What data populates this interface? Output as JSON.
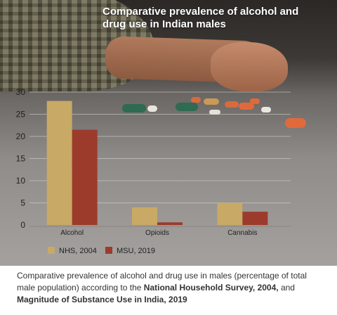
{
  "colors": {
    "nhs": "#c8a965",
    "msu": "#9c3b2c",
    "axis_text": "#222222"
  },
  "caption": {
    "part1": "Comparative prevalence of alcohol and drug use in males (percentage of total male population) according to the ",
    "bold1": "National Household Survey, 2004,",
    "part2": " and ",
    "bold2": "Magnitude of Substance Use in India, 2019"
  },
  "chart_data": {
    "type": "bar",
    "title": "Comparative prevalence of alcohol and drug use in Indian males",
    "categories": [
      "Alcohol",
      "Opioids",
      "Cannabis"
    ],
    "series": [
      {
        "name": "NHS, 2004",
        "values": [
          28,
          4,
          5
        ]
      },
      {
        "name": "MSU, 2019",
        "values": [
          21.5,
          0.6,
          3
        ]
      }
    ],
    "ylim": [
      0,
      30
    ],
    "yticks": [
      0,
      5,
      10,
      15,
      20,
      25,
      30
    ],
    "ytick_labels": [
      "0",
      "5",
      "10",
      "15",
      "20",
      "25",
      "30"
    ],
    "grid": true,
    "legend": "bottom-left"
  }
}
